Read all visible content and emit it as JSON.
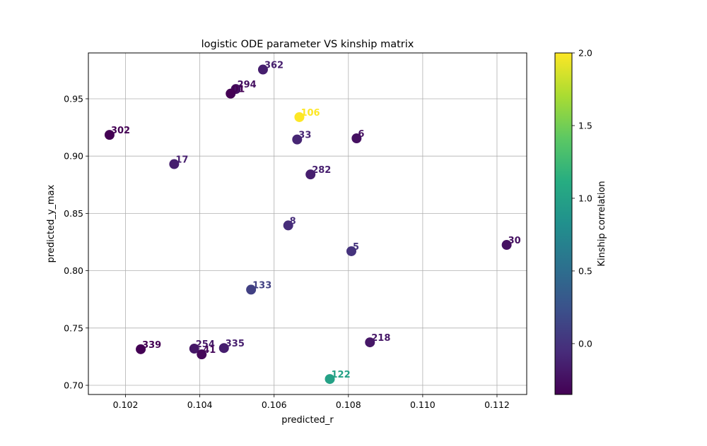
{
  "chart_data": {
    "type": "scatter",
    "title": "logistic ODE parameter VS kinship matrix",
    "xlabel": "predicted_r",
    "ylabel": "predicted_y_max",
    "xlim": [
      0.101,
      0.1128
    ],
    "ylim": [
      0.692,
      0.99
    ],
    "x_ticks": [
      0.102,
      0.104,
      0.106,
      0.108,
      0.11,
      0.112
    ],
    "x_tick_labels": [
      "0.102",
      "0.104",
      "0.106",
      "0.108",
      "0.110",
      "0.112"
    ],
    "y_ticks": [
      0.7,
      0.75,
      0.8,
      0.85,
      0.9,
      0.95
    ],
    "y_tick_labels": [
      "0.70",
      "0.75",
      "0.80",
      "0.85",
      "0.90",
      "0.95"
    ],
    "grid": true,
    "colormap": "viridis",
    "colorbar": {
      "label": "Kinship correlation",
      "range": [
        -0.35,
        2.0
      ],
      "ticks": [
        0.0,
        0.5,
        1.0,
        1.5,
        2.0
      ],
      "tick_labels": [
        "0.0",
        "0.5",
        "1.0",
        "1.5",
        "2.0"
      ]
    },
    "points": [
      {
        "label": "362",
        "x": 0.1057,
        "y": 0.9755,
        "c": -0.15
      },
      {
        "label": "294",
        "x": 0.10497,
        "y": 0.9585,
        "c": -0.25
      },
      {
        "label": "01",
        "x": 0.10483,
        "y": 0.9545,
        "c": -0.35
      },
      {
        "label": "106",
        "x": 0.10668,
        "y": 0.934,
        "c": 2.0
      },
      {
        "label": "302",
        "x": 0.10157,
        "y": 0.9185,
        "c": -0.35
      },
      {
        "label": "33",
        "x": 0.10662,
        "y": 0.9145,
        "c": -0.1
      },
      {
        "label": "6",
        "x": 0.10822,
        "y": 0.9155,
        "c": -0.25
      },
      {
        "label": "17",
        "x": 0.10331,
        "y": 0.893,
        "c": -0.15
      },
      {
        "label": "282",
        "x": 0.10698,
        "y": 0.884,
        "c": -0.15
      },
      {
        "label": "8",
        "x": 0.10638,
        "y": 0.8395,
        "c": -0.05
      },
      {
        "label": "5",
        "x": 0.10808,
        "y": 0.817,
        "c": 0.0
      },
      {
        "label": "30",
        "x": 0.11226,
        "y": 0.8225,
        "c": -0.25
      },
      {
        "label": "133",
        "x": 0.10538,
        "y": 0.7835,
        "c": 0.1
      },
      {
        "label": "339",
        "x": 0.10241,
        "y": 0.7315,
        "c": -0.35
      },
      {
        "label": "254",
        "x": 0.10385,
        "y": 0.732,
        "c": -0.2
      },
      {
        "label": "41",
        "x": 0.10405,
        "y": 0.727,
        "c": -0.3
      },
      {
        "label": "335",
        "x": 0.10465,
        "y": 0.7325,
        "c": -0.15
      },
      {
        "label": "218",
        "x": 0.10858,
        "y": 0.7375,
        "c": -0.2
      },
      {
        "label": "122",
        "x": 0.1075,
        "y": 0.7055,
        "c": 1.0
      }
    ]
  }
}
